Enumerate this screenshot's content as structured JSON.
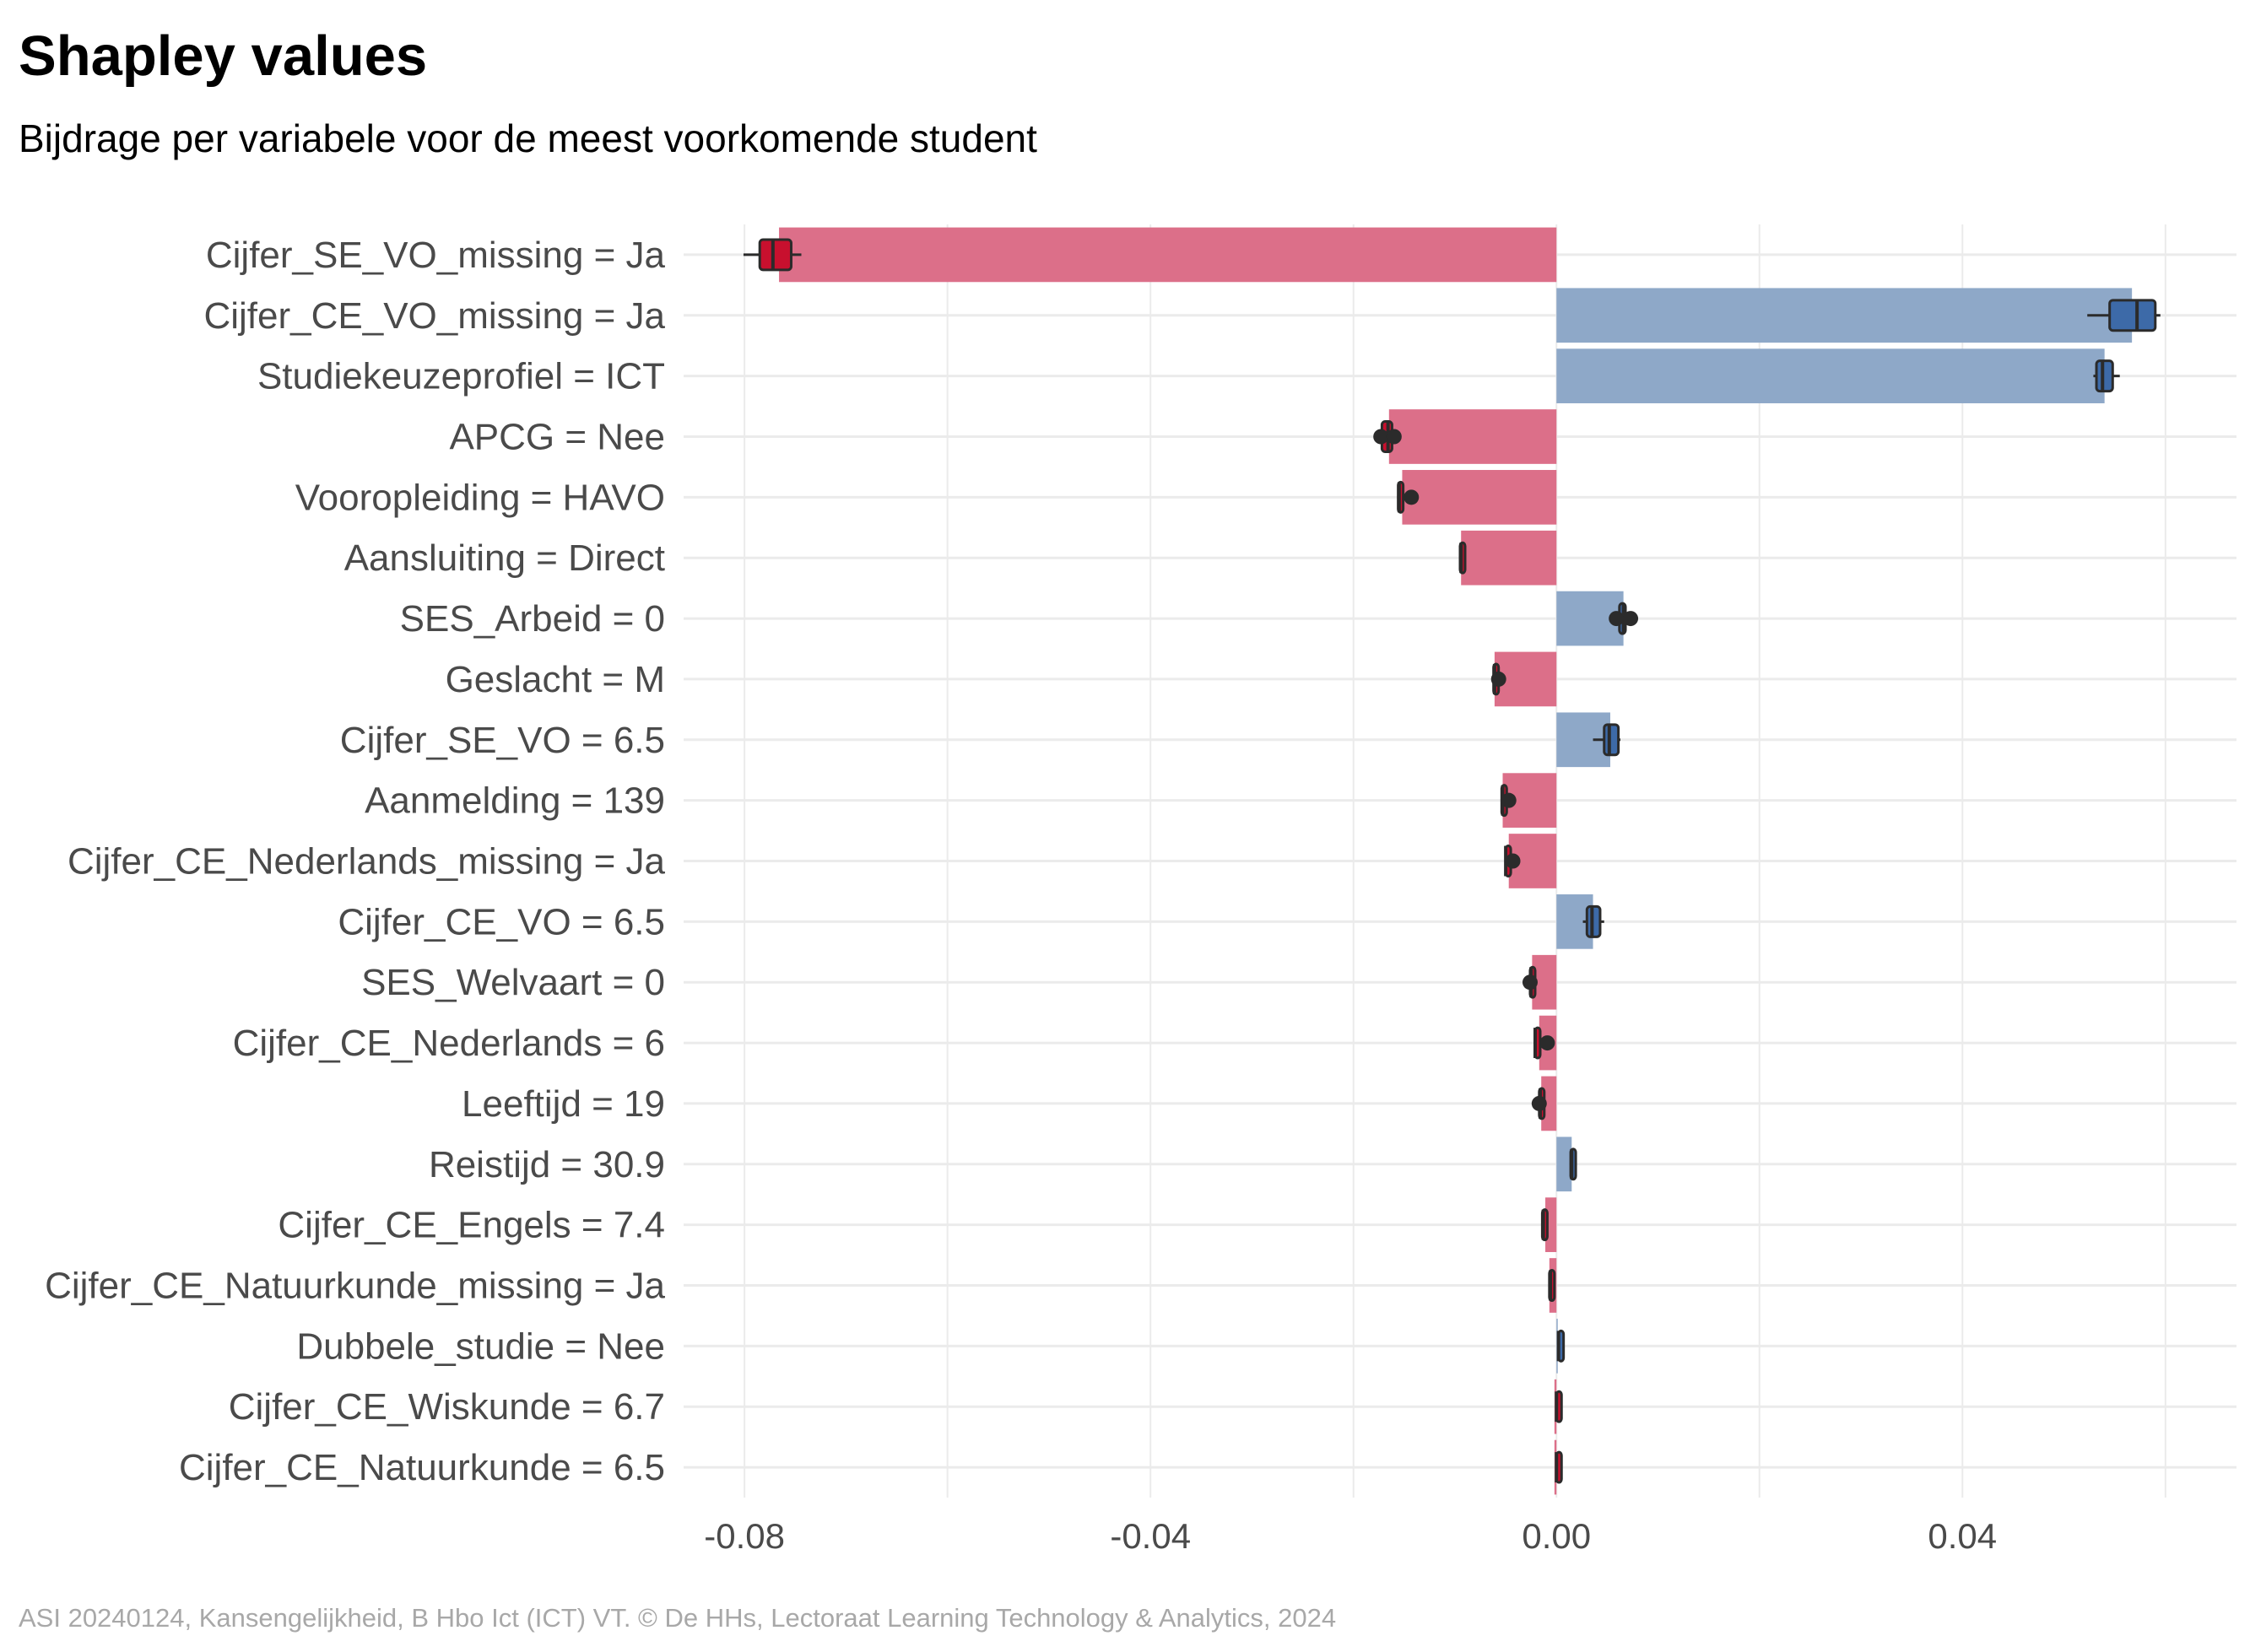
{
  "chart_data": {
    "type": "bar",
    "orientation": "horizontal",
    "title": "Shapley values",
    "subtitle": "Bijdrage per variabele voor de meest voorkomende student",
    "caption": "ASI 20240124, Kansengelijkheid, B Hbo Ict (ICT) VT. © De HHs, Lectoraat Learning Technology & Analytics, 2024",
    "xlabel": "",
    "ylabel": "",
    "xlim": [
      -0.086,
      0.067
    ],
    "xticks": [
      -0.08,
      -0.04,
      0.0,
      0.04
    ],
    "xtick_labels": [
      "-0.08",
      "-0.04",
      "0.00",
      "0.04"
    ],
    "grid": true,
    "legend": "none",
    "colors": {
      "negative_bar": "#dc6f89",
      "positive_bar": "#8ea8c8",
      "negative_box": "#c8102e",
      "positive_box": "#3d6aa8",
      "whisker": "#2b2b2b",
      "grid": "#ebebeb",
      "label_text": "#4a4a4a",
      "caption_text": "#a8a8a8"
    },
    "categories": [
      "Cijfer_SE_VO_missing = Ja",
      "Cijfer_CE_VO_missing = Ja",
      "Studiekeuzeprofiel = ICT",
      "APCG = Nee",
      "Vooropleiding = HAVO",
      "Aansluiting = Direct",
      "SES_Arbeid = 0",
      "Geslacht = M",
      "Cijfer_SE_VO = 6.5",
      "Aanmelding = 139",
      "Cijfer_CE_Nederlands_missing = Ja",
      "Cijfer_CE_VO = 6.5",
      "SES_Welvaart = 0",
      "Cijfer_CE_Nederlands = 6",
      "Leeftijd = 19",
      "Reistijd = 30.9",
      "Cijfer_CE_Engels = 7.4",
      "Cijfer_CE_Natuurkunde_missing = Ja",
      "Dubbele_studie = Nee",
      "Cijfer_CE_Wiskunde = 6.7",
      "Cijfer_CE_Natuurkunde = 6.5"
    ],
    "values": [
      -0.0766,
      0.0567,
      0.054,
      -0.0165,
      -0.0152,
      -0.0094,
      0.0066,
      -0.0061,
      0.0053,
      -0.0053,
      -0.0047,
      0.0036,
      -0.0024,
      -0.0017,
      -0.0015,
      0.0015,
      -0.0011,
      -0.0007,
      0.0001,
      -0.0002,
      -0.0002
    ],
    "boxplots": [
      {
        "whisker_low": -0.0801,
        "q1": -0.0785,
        "median": -0.0772,
        "q3": -0.0754,
        "whisker_high": -0.0744
      },
      {
        "whisker_low": 0.0523,
        "q1": 0.0545,
        "median": 0.0572,
        "q3": 0.059,
        "whisker_high": 0.0595
      },
      {
        "whisker_low": 0.0529,
        "q1": 0.0532,
        "median": 0.0538,
        "q3": 0.0548,
        "whisker_high": 0.0555
      },
      {
        "whisker_low": -0.0178,
        "q1": -0.0172,
        "median": -0.0166,
        "q3": -0.0162,
        "whisker_high": -0.0158,
        "outliers": [
          -0.0173,
          -0.016
        ]
      },
      {
        "whisker_low": -0.0157,
        "q1": -0.0156,
        "median": -0.0155,
        "q3": -0.0153,
        "whisker_high": -0.0152,
        "outliers": [
          -0.0143
        ]
      },
      {
        "whisker_low": -0.0095,
        "q1": -0.0095,
        "median": -0.0094,
        "q3": -0.0094,
        "whisker_high": -0.0093
      },
      {
        "whisker_low": 0.0057,
        "q1": 0.0062,
        "median": 0.0066,
        "q3": 0.0068,
        "whisker_high": 0.007,
        "outliers": [
          0.0059,
          0.0073
        ]
      },
      {
        "whisker_low": -0.0062,
        "q1": -0.0062,
        "median": -0.0061,
        "q3": -0.0061,
        "whisker_high": -0.006,
        "outliers": [
          -0.0057
        ]
      },
      {
        "whisker_low": 0.0036,
        "q1": 0.0047,
        "median": 0.0052,
        "q3": 0.0061,
        "whisker_high": 0.0063
      },
      {
        "whisker_low": -0.0055,
        "q1": -0.0054,
        "median": -0.0053,
        "q3": -0.0053,
        "whisker_high": -0.0052,
        "outliers": [
          -0.0047
        ]
      },
      {
        "whisker_low": -0.0051,
        "q1": -0.005,
        "median": -0.005,
        "q3": -0.0049,
        "whisker_high": -0.0048,
        "outliers": [
          -0.0043
        ]
      },
      {
        "whisker_low": 0.0026,
        "q1": 0.003,
        "median": 0.0035,
        "q3": 0.0043,
        "whisker_high": 0.0047
      },
      {
        "whisker_low": -0.0027,
        "q1": -0.0026,
        "median": -0.0025,
        "q3": -0.0024,
        "whisker_high": -0.0023,
        "outliers": [
          -0.0026
        ]
      },
      {
        "whisker_low": -0.0022,
        "q1": -0.0021,
        "median": -0.0021,
        "q3": -0.002,
        "whisker_high": -0.0019,
        "outliers": [
          -0.0009
        ]
      },
      {
        "whisker_low": -0.0018,
        "q1": -0.0017,
        "median": -0.0016,
        "q3": -0.0016,
        "whisker_high": -0.0015,
        "outliers": [
          -0.0017
        ]
      },
      {
        "whisker_low": 0.0013,
        "q1": 0.0014,
        "median": 0.0015,
        "q3": 0.0015,
        "whisker_high": 0.0016
      },
      {
        "whisker_low": -0.0014,
        "q1": -0.0014,
        "median": -0.0013,
        "q3": -0.0012,
        "whisker_high": -0.0012
      },
      {
        "whisker_low": -0.0007,
        "q1": -0.0007,
        "median": -0.0006,
        "q3": -0.0006,
        "whisker_high": -0.0005
      },
      {
        "whisker_low": 0.0002,
        "q1": 0.0002,
        "median": 0.0002,
        "q3": 0.0002,
        "whisker_high": 0.0002
      },
      {
        "whisker_low": 0.0,
        "q1": 0.0,
        "median": 0.0,
        "q3": 0.0,
        "whisker_high": 0.0
      },
      {
        "whisker_low": 0.0,
        "q1": 0.0,
        "median": 0.0,
        "q3": 0.0,
        "whisker_high": 0.0
      }
    ]
  }
}
